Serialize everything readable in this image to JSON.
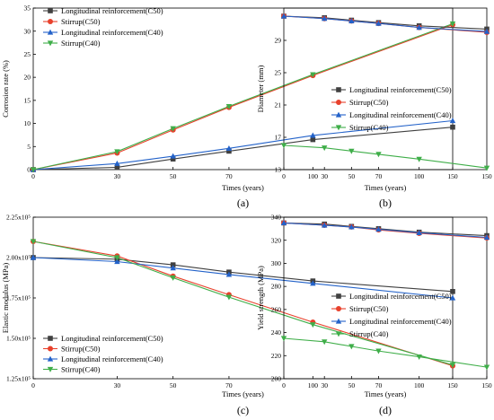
{
  "chart_data": [
    {
      "type": "line",
      "panel_label": "(a)",
      "xlabel": "Times (years)",
      "ylabel": "Corrosion rate (%)",
      "x": [
        0,
        30,
        50,
        70,
        100,
        150
      ],
      "xticks": [
        "0",
        "30",
        "50",
        "70",
        "100",
        "150"
      ],
      "xlim": [
        0,
        150
      ],
      "ylim": [
        0,
        35
      ],
      "yticks": [
        "0",
        "5",
        "10",
        "15",
        "20",
        "25",
        "30",
        "35"
      ],
      "legend_position": "top-left",
      "series": [
        {
          "name": "Longitudinal reinforcement(C50)",
          "color": "#404040",
          "marker": "square",
          "values": [
            0,
            0.5,
            2.3,
            4.0,
            6.5,
            9.2
          ]
        },
        {
          "name": "Stirrup(C50)",
          "color": "#e8412c",
          "marker": "circle",
          "values": [
            0,
            3.6,
            8.6,
            13.5,
            20.4,
            31.4
          ]
        },
        {
          "name": "Longitudinal reinforcement(C40)",
          "color": "#2362c9",
          "marker": "triangle-up",
          "values": [
            0,
            1.3,
            2.9,
            4.6,
            7.4,
            10.6
          ]
        },
        {
          "name": "Stirrup(C40)",
          "color": "#3fae49",
          "marker": "triangle-down",
          "values": [
            0,
            3.9,
            8.9,
            13.7,
            20.6,
            31.6
          ]
        }
      ]
    },
    {
      "type": "line",
      "panel_label": "(b)",
      "xlabel": "Times (years)",
      "ylabel": "Diameter (mm)",
      "x": [
        0,
        30,
        50,
        70,
        100,
        150
      ],
      "xticks": [
        "0",
        "30",
        "50",
        "70",
        "100",
        "150"
      ],
      "xlim": [
        0,
        150
      ],
      "ylim": [
        13,
        33
      ],
      "yticks": [
        "13",
        "17",
        "21",
        "25",
        "29"
      ],
      "legend_position": "center-right",
      "series": [
        {
          "name": "Longitudinal reinforcement(C50)",
          "color": "#404040",
          "marker": "square",
          "values": [
            32.0,
            31.8,
            31.5,
            31.2,
            30.8,
            30.4
          ]
        },
        {
          "name": "Stirrup(C50)",
          "color": "#e8412c",
          "marker": "circle",
          "values": [
            32.0,
            31.7,
            31.4,
            31.1,
            30.6,
            30.0
          ]
        },
        {
          "name": "Longitudinal reinforcement(C40)",
          "color": "#2362c9",
          "marker": "triangle-up",
          "values": [
            32.0,
            31.7,
            31.4,
            31.1,
            30.6,
            30.1
          ]
        },
        {
          "name": "Stirrup(C40)",
          "color": "#3fae49",
          "marker": "triangle-down",
          "values": [
            16.0,
            15.7,
            15.3,
            14.9,
            14.3,
            13.2
          ]
        }
      ]
    },
    {
      "type": "line",
      "panel_label": "(c)",
      "xlabel": "Times (years)",
      "ylabel": "Elastic modulus (MPa)",
      "x": [
        0,
        30,
        50,
        70,
        100,
        150
      ],
      "xticks": [
        "0",
        "30",
        "50",
        "70",
        "100",
        "150"
      ],
      "xlim": [
        0,
        150
      ],
      "ylim": [
        125000,
        225000
      ],
      "yticks": [
        "1.25x10⁵",
        "1.50x10⁵",
        "1.75x10⁵",
        "2.00x10⁵",
        "2.25x10⁵"
      ],
      "legend_position": "bottom-left",
      "series": [
        {
          "name": "Longitudinal reinforcement(C50)",
          "color": "#404040",
          "marker": "square",
          "values": [
            200000,
            199000,
            195500,
            191000,
            185500,
            179000
          ]
        },
        {
          "name": "Stirrup(C50)",
          "color": "#e8412c",
          "marker": "circle",
          "values": [
            210000,
            201000,
            188500,
            177000,
            160000,
            133000
          ]
        },
        {
          "name": "Longitudinal reinforcement(C40)",
          "color": "#2362c9",
          "marker": "triangle-up",
          "values": [
            200000,
            197500,
            193500,
            189500,
            184000,
            175000
          ]
        },
        {
          "name": "Stirrup(C40)",
          "color": "#3fae49",
          "marker": "triangle-down",
          "values": [
            210000,
            200000,
            187500,
            175500,
            158500,
            133500
          ]
        }
      ]
    },
    {
      "type": "line",
      "panel_label": "(d)",
      "xlabel": "Times (years)",
      "ylabel": "Yield strength (MPa)",
      "x": [
        0,
        30,
        50,
        70,
        100,
        150
      ],
      "xticks": [
        "0",
        "30",
        "50",
        "70",
        "100",
        "150"
      ],
      "xlim": [
        0,
        150
      ],
      "ylim": [
        200,
        340
      ],
      "yticks": [
        "200",
        "220",
        "240",
        "260",
        "280",
        "300",
        "320",
        "340"
      ],
      "legend_position": "center-right",
      "series": [
        {
          "name": "Longitudinal reinforcement(C50)",
          "color": "#404040",
          "marker": "square",
          "values": [
            335,
            334,
            332,
            330,
            327,
            324
          ]
        },
        {
          "name": "Stirrup(C50)",
          "color": "#e8412c",
          "marker": "circle",
          "values": [
            335,
            333,
            331.5,
            329,
            326,
            322
          ]
        },
        {
          "name": "Longitudinal reinforcement(C40)",
          "color": "#2362c9",
          "marker": "triangle-up",
          "values": [
            335,
            333,
            331.5,
            329.5,
            326.5,
            322.5
          ]
        },
        {
          "name": "Stirrup(C40)",
          "color": "#3fae49",
          "marker": "triangle-down",
          "values": [
            235,
            232,
            228,
            224,
            219,
            210
          ]
        }
      ]
    }
  ]
}
